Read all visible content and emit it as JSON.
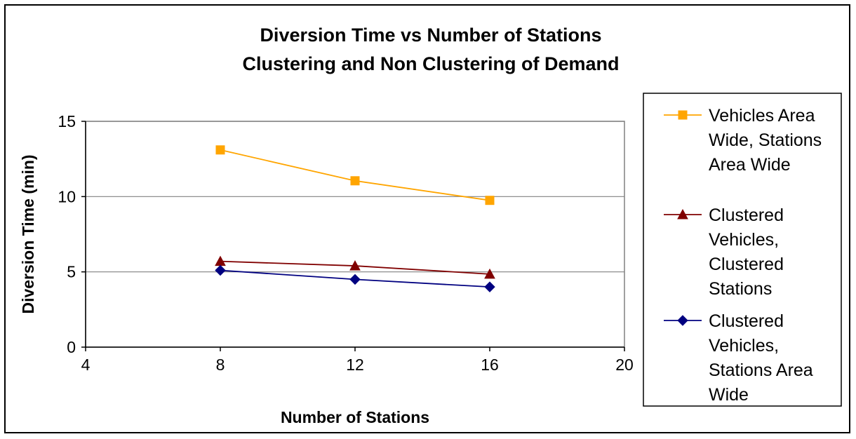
{
  "chart_data": {
    "type": "line",
    "title": "Diversion Time vs Number of Stations",
    "subtitle": "Clustering and Non Clustering of Demand",
    "xlabel": "Number of Stations",
    "ylabel": "Diversion Time (min)",
    "xlim": [
      4,
      20
    ],
    "ylim": [
      0,
      15
    ],
    "xticks": [
      4,
      8,
      12,
      16,
      20
    ],
    "yticks": [
      0,
      5,
      10,
      15
    ],
    "grid": "horizontal",
    "legend_position": "right",
    "x": [
      8,
      12,
      16
    ],
    "series": [
      {
        "name": "Vehicles Area Wide, Stations Area Wide",
        "legend_lines": [
          "Vehicles Area",
          "Wide, Stations",
          "Area Wide"
        ],
        "marker": "square",
        "color": "#FFA500",
        "values": [
          13.1,
          11.05,
          9.75
        ]
      },
      {
        "name": "Clustered Vehicles, Clustered Stations",
        "legend_lines": [
          "Clustered",
          "Vehicles,",
          "Clustered",
          "Stations"
        ],
        "marker": "triangle",
        "color": "#800000",
        "values": [
          5.7,
          5.4,
          4.85
        ]
      },
      {
        "name": "Clustered Vehicles, Stations Area Wide",
        "legend_lines": [
          "Clustered",
          "Vehicles,",
          "Stations Area",
          "Wide"
        ],
        "marker": "diamond",
        "color": "#000080",
        "values": [
          5.1,
          4.5,
          4.0
        ]
      }
    ]
  }
}
